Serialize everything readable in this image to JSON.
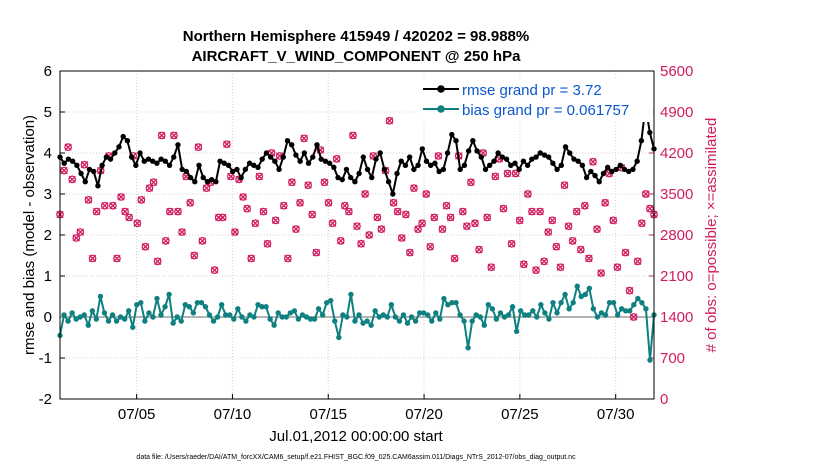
{
  "chart_data": {
    "type": "line",
    "title_line1": "Northern Hemisphere 415949 / 420202 = 98.988%",
    "title_line2": "AIRCRAFT_V_WIND_COMPONENT @ 250 hPa",
    "xlabel": "Jul.01,2012 00:00:00 start",
    "ylabel_left": "rmse and bias (model - observation)",
    "ylabel_right": "# of obs: o=possible; ×=assimilated",
    "footnote": "data file: /Users/raeder/DAI/ATM_forcXX/CAM6_setup/f.e21.FHIST_BGC.f09_025.CAM6assim.011/Diags_NTrS_2012-07/obs_diag_output.nc",
    "x_range": [
      1,
      32
    ],
    "x_ticks": [
      5,
      10,
      15,
      20,
      25,
      30
    ],
    "x_tick_labels": [
      "07/05",
      "07/10",
      "07/15",
      "07/20",
      "07/25",
      "07/30"
    ],
    "y_left_range": [
      -2,
      6
    ],
    "y_left_ticks": [
      "-2",
      "-1",
      "0",
      "1",
      "2",
      "3",
      "4",
      "5",
      "6"
    ],
    "y_right_range": [
      0,
      5600
    ],
    "y_right_ticks": [
      "0",
      "700",
      "1400",
      "2100",
      "2800",
      "3500",
      "4200",
      "4900",
      "5600"
    ],
    "colors": {
      "rmse": "#000000",
      "bias": "#0f8080",
      "obs": "#d01c60",
      "zero_line": "#b4b4b4",
      "legend_text": "#0b57d0"
    },
    "series": [
      {
        "name": "rmse",
        "legend": "rmse grand pr = 3.72",
        "values": [
          3.9,
          3.75,
          3.85,
          3.8,
          3.7,
          3.5,
          3.3,
          3.6,
          3.55,
          3.2,
          3.7,
          3.9,
          3.85,
          4.0,
          4.15,
          4.4,
          4.3,
          3.9,
          3.7,
          4.0,
          3.8,
          3.85,
          3.8,
          3.75,
          3.85,
          3.8,
          3.7,
          3.9,
          4.2,
          3.6,
          3.55,
          3.4,
          3.3,
          3.7,
          3.4,
          3.3,
          3.35,
          3.3,
          3.8,
          3.75,
          3.7,
          3.55,
          3.6,
          3.4,
          3.6,
          3.75,
          3.7,
          3.65,
          3.85,
          4.0,
          3.9,
          3.8,
          3.6,
          3.9,
          4.3,
          4.2,
          3.95,
          3.8,
          4.0,
          3.75,
          3.9,
          4.2,
          3.85,
          3.8,
          3.75,
          3.65,
          3.4,
          3.35,
          3.6,
          3.4,
          3.3,
          3.5,
          3.9,
          3.6,
          3.4,
          3.85,
          4.0,
          3.6,
          3.3,
          3.0,
          3.5,
          3.8,
          3.7,
          3.9,
          3.6,
          3.7,
          4.1,
          3.8,
          3.7,
          3.75,
          3.55,
          3.6,
          4.0,
          4.45,
          4.3,
          3.6,
          3.7,
          4.05,
          4.3,
          4.05,
          3.9,
          3.6,
          3.7,
          3.8,
          4.0,
          3.9,
          3.85,
          3.7,
          3.75,
          3.6,
          3.8,
          3.7,
          3.85,
          3.9,
          4.0,
          3.95,
          3.9,
          3.75,
          3.6,
          3.7,
          4.15,
          4.0,
          3.85,
          3.8,
          3.7,
          3.4,
          3.55,
          3.45,
          3.3,
          3.5,
          3.65,
          3.55,
          3.6,
          3.7,
          3.6,
          3.55,
          3.6,
          3.8,
          4.3,
          5.15,
          4.5,
          4.1
        ]
      },
      {
        "name": "bias",
        "legend": "bias grand pr = 0.061757",
        "values": [
          -0.45,
          0.05,
          -0.1,
          0.1,
          -0.05,
          0.0,
          0.05,
          -0.2,
          0.15,
          -0.05,
          0.5,
          0.1,
          -0.1,
          0.05,
          -0.1,
          0.0,
          -0.05,
          0.15,
          -0.25,
          0.3,
          0.35,
          -0.1,
          0.1,
          0.0,
          0.45,
          0.05,
          0.25,
          0.55,
          -0.15,
          0.0,
          -0.1,
          0.3,
          0.25,
          0.1,
          0.35,
          0.35,
          0.25,
          0.05,
          -0.1,
          0.0,
          0.3,
          0.05,
          0.05,
          -0.05,
          0.2,
          0.0,
          -0.1,
          0.05,
          0.0,
          0.3,
          0.25,
          0.25,
          -0.05,
          -0.2,
          0.1,
          0.0,
          0.0,
          0.1,
          0.15,
          -0.05,
          0.05,
          0.0,
          -0.05,
          -0.05,
          0.2,
          0.05,
          0.35,
          0.4,
          -0.1,
          -0.5,
          0.05,
          0.0,
          0.55,
          -0.1,
          0.05,
          -0.15,
          -0.1,
          -0.2,
          0.15,
          0.0,
          0.05,
          0.0,
          0.3,
          0.0,
          -0.1,
          0.05,
          -0.15,
          0.0,
          -0.1,
          0.1,
          0.1,
          0.05,
          -0.1,
          0.1,
          -0.05,
          0.45,
          0.3,
          0.35,
          0.35,
          0.05,
          -0.1,
          -0.75,
          -0.1,
          0.05,
          0.0,
          -0.2,
          0.3,
          0.2,
          -0.05,
          0.1,
          0.0,
          0.05,
          0.25,
          -0.35,
          0.15,
          0.05,
          0.05,
          0.15,
          0.0,
          0.3,
          0.1,
          -0.05,
          0.35,
          0.1,
          0.35,
          0.55,
          0.2,
          0.35,
          0.75,
          0.5,
          0.55,
          0.7,
          0.2,
          0.0,
          0.1,
          0.05,
          0.35,
          0.35,
          0.05,
          0.2,
          0.15,
          0.15,
          0.3,
          0.45,
          0.35,
          0.2,
          -1.05,
          0.05
        ]
      },
      {
        "name": "obs_possible",
        "values": [
          3150,
          3900,
          4300,
          3750,
          2750,
          2850,
          4000,
          3400,
          2400,
          3200,
          3900,
          3300,
          4150,
          3300,
          2400,
          3450,
          3200,
          3100,
          4150,
          3000,
          3400,
          2600,
          3600,
          3700,
          2350,
          4500,
          2700,
          3200,
          4500,
          3200,
          2850,
          3800,
          3350,
          2450,
          4300,
          2700,
          3600,
          3700,
          2200,
          3100,
          3100,
          4350,
          3800,
          2850,
          3750,
          3450,
          3250,
          2400,
          3000,
          3800,
          3200,
          2650,
          4200,
          3050,
          4150,
          3300,
          2400,
          3700,
          2900,
          3350,
          4450,
          3650,
          3150,
          2500,
          4250,
          3700,
          3350,
          3000,
          4100,
          2700,
          3300,
          3200,
          4500,
          2950,
          2650,
          3500,
          2800,
          4150,
          3100,
          2900,
          3900,
          4750,
          3350,
          3200,
          2750,
          3150,
          2500,
          3600,
          2900,
          3000,
          3500,
          2600,
          3100,
          4150,
          2900,
          3300,
          3100,
          2400,
          4150,
          3200,
          2950,
          3700,
          3000,
          2550,
          4200,
          3100,
          2250,
          3800,
          4100,
          3250,
          3850,
          2650,
          3850,
          3050,
          2300,
          3500,
          3200,
          2200,
          3200,
          2350,
          2850,
          3050,
          2600,
          2250,
          3650,
          2950,
          2700,
          3200,
          2550,
          3300,
          2400,
          4050,
          2900,
          2150,
          3350,
          3850,
          3050,
          2250,
          3950,
          2500,
          1850,
          1400,
          2350,
          3000,
          3500,
          3250,
          3150
        ]
      }
    ]
  }
}
